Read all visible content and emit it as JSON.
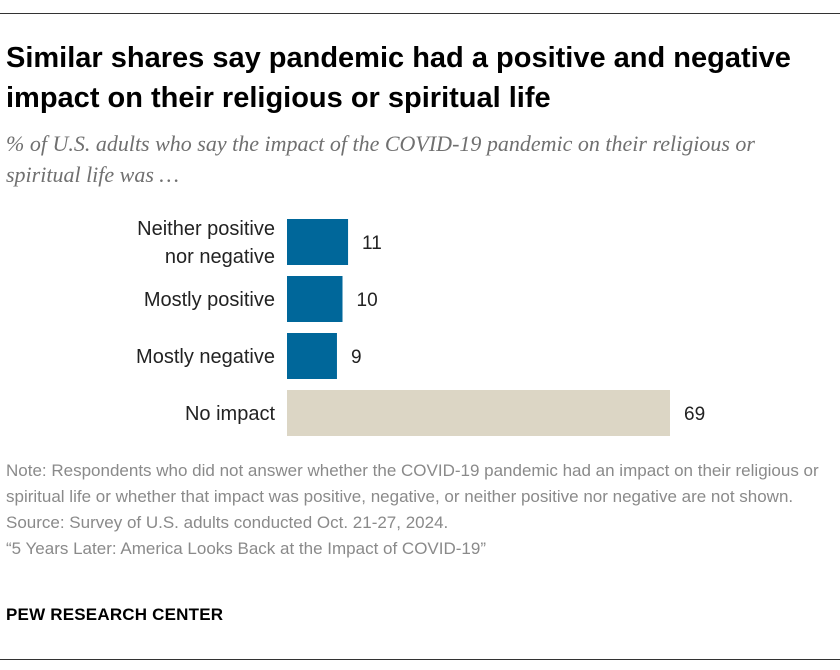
{
  "title": "Similar shares say pandemic had a positive and negative impact on their religious or spiritual life",
  "subtitle": "% of U.S. adults who say the impact of the COVID-19 pandemic on their religious or spiritual life was …",
  "colors": {
    "primary_bar": "#00679a",
    "neutral_bar": "#dcd6c5"
  },
  "chart_data": {
    "type": "bar",
    "orientation": "horizontal",
    "categories": [
      [
        "Neither positive",
        "nor negative"
      ],
      [
        "Mostly positive"
      ],
      [
        "Mostly negative"
      ],
      [
        "No impact"
      ]
    ],
    "values": [
      11,
      10,
      9,
      69
    ],
    "value_labels": [
      "11",
      "10",
      "9",
      "69"
    ],
    "bar_colors": [
      "#00679a",
      "#00679a",
      "#00679a",
      "#dcd6c5"
    ],
    "xlim": [
      0,
      69
    ],
    "grid": false,
    "legend": "none",
    "title": "",
    "xlabel": "",
    "ylabel": ""
  },
  "note": "Note: Respondents who did not answer whether the COVID-19 pandemic had an impact on their religious or spiritual life or whether that impact was positive, negative, or neither positive nor negative are not shown.",
  "source": "Source: Survey of U.S. adults conducted Oct. 21-27, 2024.",
  "report": "“5 Years Later: America Looks Back at the Impact of COVID-19”",
  "brand": "PEW RESEARCH CENTER"
}
